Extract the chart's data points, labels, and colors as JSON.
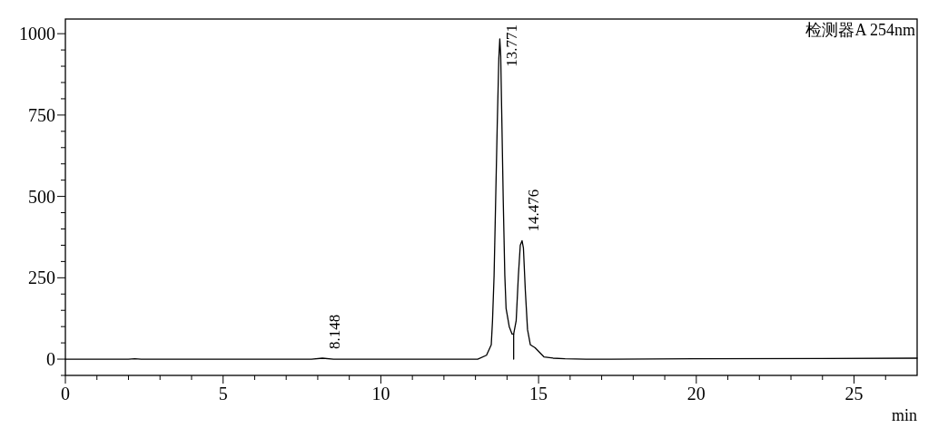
{
  "chart_data": {
    "type": "line",
    "title": "检测器A 254nm",
    "xlabel": "min",
    "xlim": [
      0,
      27
    ],
    "ylim": [
      -50,
      1045
    ],
    "xticks": [
      0,
      {
        "value": 1,
        "label": null
      },
      {
        "value": 2,
        "label": null
      },
      {
        "value": 3,
        "label": null
      },
      {
        "value": 4,
        "label": null
      },
      5,
      {
        "value": 6,
        "label": null
      },
      {
        "value": 7,
        "label": null
      },
      {
        "value": 8,
        "label": null
      },
      {
        "value": 9,
        "label": null
      },
      10,
      {
        "value": 11,
        "label": null
      },
      {
        "value": 12,
        "label": null
      },
      {
        "value": 13,
        "label": null
      },
      {
        "value": 14,
        "label": null
      },
      15,
      {
        "value": 16,
        "label": null
      },
      {
        "value": 17,
        "label": null
      },
      {
        "value": 18,
        "label": null
      },
      {
        "value": 19,
        "label": null
      },
      20,
      {
        "value": 21,
        "label": null
      },
      {
        "value": 22,
        "label": null
      },
      {
        "value": 23,
        "label": null
      },
      {
        "value": 24,
        "label": null
      },
      25,
      {
        "value": 26,
        "label": null
      }
    ],
    "yticks": [
      {
        "value": -50,
        "label": null
      },
      0,
      {
        "value": 50,
        "label": null
      },
      {
        "value": 100,
        "label": null
      },
      {
        "value": 150,
        "label": null
      },
      {
        "value": 200,
        "label": null
      },
      250,
      {
        "value": 300,
        "label": null
      },
      {
        "value": 350,
        "label": null
      },
      {
        "value": 400,
        "label": null
      },
      {
        "value": 450,
        "label": null
      },
      500,
      {
        "value": 550,
        "label": null
      },
      {
        "value": 600,
        "label": null
      },
      {
        "value": 650,
        "label": null
      },
      {
        "value": 700,
        "label": null
      },
      750,
      {
        "value": 800,
        "label": null
      },
      {
        "value": 850,
        "label": null
      },
      {
        "value": 900,
        "label": null
      },
      {
        "value": 950,
        "label": null
      },
      1000
    ],
    "series": [
      {
        "color": "#000000",
        "x": [
          0,
          1,
          2,
          2.2,
          2.4,
          4,
          6,
          7.8,
          8.148,
          8.5,
          10,
          12,
          12.9,
          13.07,
          13.35,
          13.5,
          13.54,
          13.59,
          13.64,
          13.69,
          13.74,
          13.771,
          13.8,
          13.83,
          13.88,
          13.93,
          13.97,
          14.07,
          14.16,
          14.21,
          14.29,
          14.36,
          14.42,
          14.476,
          14.52,
          14.58,
          14.65,
          14.74,
          14.89,
          15.03,
          15.17,
          15.46,
          15.84,
          16.5,
          17.3,
          20,
          24,
          27
        ],
        "values": [
          0,
          0,
          0,
          1,
          0,
          0,
          0,
          0,
          3,
          0,
          0,
          0,
          0,
          0,
          12,
          44,
          118,
          257,
          489,
          720,
          924,
          984,
          933,
          767,
          489,
          257,
          156,
          100,
          77,
          77,
          118,
          257,
          350,
          364,
          341,
          211,
          91,
          44,
          35,
          21,
          7,
          3,
          1,
          0,
          0,
          1,
          2,
          3
        ]
      },
      {
        "color": "#000000",
        "x": [
          14.21,
          14.21
        ],
        "values": [
          0,
          77
        ]
      }
    ],
    "annotations": [
      {
        "text": "8.148",
        "x": 8.148,
        "y": 3
      },
      {
        "text": "13.771",
        "x": 13.771,
        "y": 984
      },
      {
        "text": "14.476",
        "x": 14.476,
        "y": 364
      }
    ]
  }
}
